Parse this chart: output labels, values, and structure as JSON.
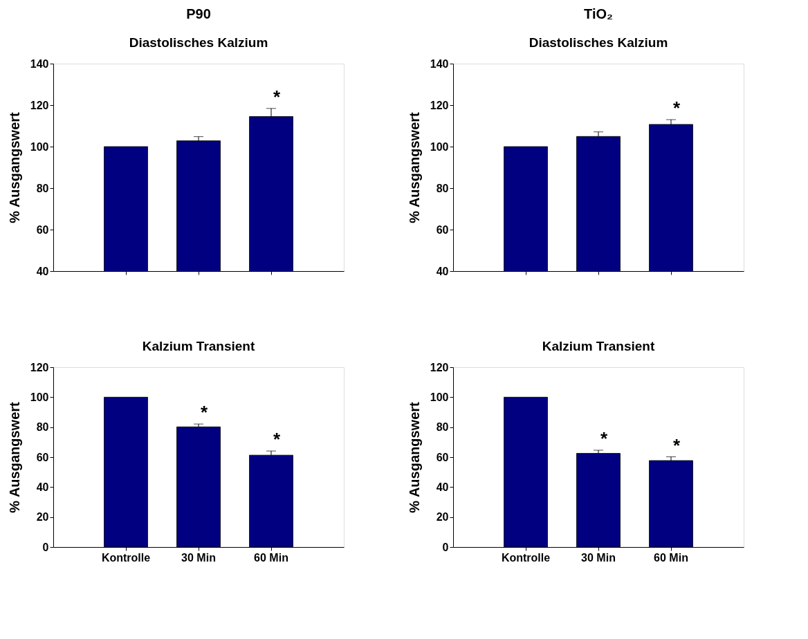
{
  "chart_data": [
    {
      "type": "bar",
      "title": "P90",
      "subtitle": "Diastolisches Kalzium",
      "ylabel": "% Ausgangswert",
      "categories": [
        null,
        null,
        null
      ],
      "tick_labels": "y",
      "series": [
        {
          "color": "#000080",
          "values": [
            100,
            102.8,
            114.5
          ],
          "errors": [
            null,
            [
              102.8,
              104.8
            ],
            [
              114.5,
              118.4
            ]
          ]
        }
      ],
      "ylim": [
        40,
        140
      ],
      "yticks": [
        40,
        60,
        80,
        100,
        120,
        140
      ],
      "grid": false,
      "annotations": [
        "*"
      ]
    },
    {
      "type": "bar",
      "title": "TiO₂",
      "subtitle": "Diastolisches Kalzium",
      "ylabel": "% Ausgangswert",
      "categories": [
        null,
        null,
        null
      ],
      "tick_labels": "y",
      "series": [
        {
          "color": "#000080",
          "values": [
            100,
            104.9,
            110.7
          ],
          "errors": [
            null,
            [
              104.9,
              107.1
            ],
            [
              110.7,
              113.0
            ]
          ]
        }
      ],
      "ylim": [
        40,
        140
      ],
      "yticks": [
        40,
        60,
        80,
        100,
        120,
        140
      ],
      "grid": false,
      "annotations": [
        "*"
      ]
    },
    {
      "type": "bar",
      "title": "Kalzium Transient",
      "ylabel": "% Ausgangswert",
      "categories": [
        "Kontrolle",
        "30 Min",
        "60 Min"
      ],
      "series": [
        {
          "color": "#000080",
          "values": [
            100,
            80.2,
            61.3
          ],
          "errors": [
            null,
            [
              80.2,
              82.1
            ],
            [
              61.3,
              64.1
            ]
          ]
        }
      ],
      "ylim": [
        0,
        120
      ],
      "yticks": [
        0,
        20,
        40,
        60,
        80,
        100,
        120
      ],
      "grid": false,
      "annotations": [
        "*",
        "*"
      ]
    },
    {
      "type": "bar",
      "title": "Kalzium Transient",
      "ylabel": "% Ausgangswert",
      "categories": [
        "Kontrolle",
        "30 Min",
        "60 Min"
      ],
      "series": [
        {
          "color": "#000080",
          "values": [
            100,
            62.5,
            57.7
          ],
          "errors": [
            null,
            [
              62.5,
              64.6
            ],
            [
              57.7,
              60.2
            ]
          ]
        }
      ],
      "ylim": [
        0,
        120
      ],
      "yticks": [
        0,
        20,
        40,
        60,
        80,
        100,
        120
      ],
      "grid": false,
      "annotations": [
        "*",
        "*"
      ]
    }
  ]
}
